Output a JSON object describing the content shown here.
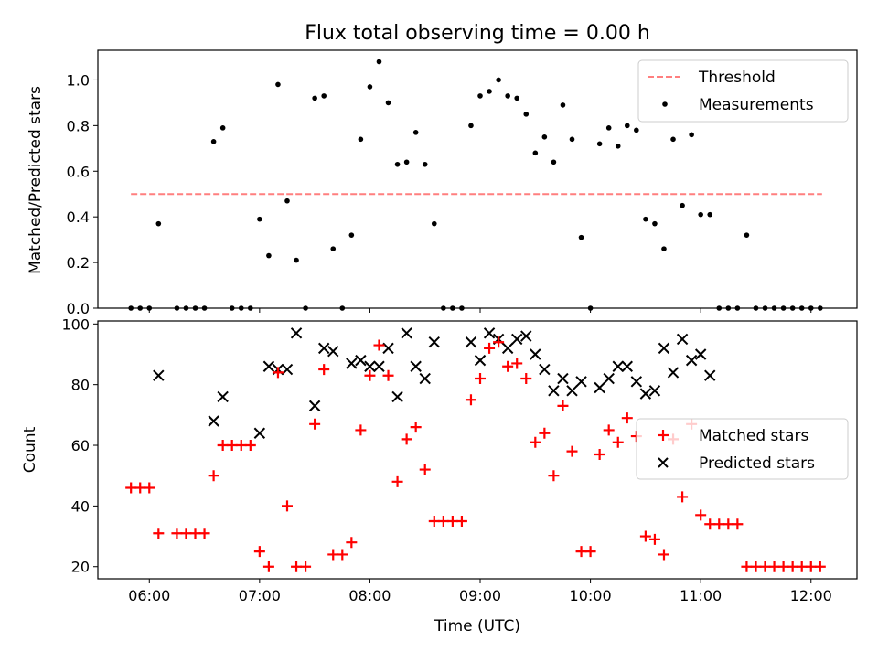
{
  "chart_data": [
    {
      "type": "scatter",
      "title": "Flux total observing time = 0.00 h",
      "xlabel": "",
      "ylabel": "Matched/Predicted stars",
      "ylim": [
        0,
        1.13
      ],
      "xlim": [
        "05:32",
        "12:25"
      ],
      "yticks": [
        "0.0",
        "0.2",
        "0.4",
        "0.6",
        "0.8",
        "1.0"
      ],
      "grid": false,
      "legend_position": "top-right",
      "threshold": {
        "name": "Threshold",
        "value": 0.5,
        "x_start": "05:50",
        "x_end": "12:06",
        "color": "#ff7f7f"
      },
      "series": [
        {
          "name": "Measurements",
          "color": "#000000",
          "points": [
            [
              "05:50",
              0.0
            ],
            [
              "05:55",
              0.0
            ],
            [
              "06:00",
              0.0
            ],
            [
              "06:05",
              0.37
            ],
            [
              "06:15",
              0.0
            ],
            [
              "06:20",
              0.0
            ],
            [
              "06:25",
              0.0
            ],
            [
              "06:30",
              0.0
            ],
            [
              "06:35",
              0.73
            ],
            [
              "06:40",
              0.79
            ],
            [
              "06:45",
              0.0
            ],
            [
              "06:50",
              0.0
            ],
            [
              "06:55",
              0.0
            ],
            [
              "07:00",
              0.39
            ],
            [
              "07:05",
              0.23
            ],
            [
              "07:10",
              0.98
            ],
            [
              "07:15",
              0.47
            ],
            [
              "07:20",
              0.21
            ],
            [
              "07:25",
              0.0
            ],
            [
              "07:30",
              0.92
            ],
            [
              "07:35",
              0.93
            ],
            [
              "07:40",
              0.26
            ],
            [
              "07:45",
              0.0
            ],
            [
              "07:50",
              0.32
            ],
            [
              "07:55",
              0.74
            ],
            [
              "08:00",
              0.97
            ],
            [
              "08:05",
              1.08
            ],
            [
              "08:10",
              0.9
            ],
            [
              "08:15",
              0.63
            ],
            [
              "08:20",
              0.64
            ],
            [
              "08:25",
              0.77
            ],
            [
              "08:30",
              0.63
            ],
            [
              "08:35",
              0.37
            ],
            [
              "08:40",
              0.0
            ],
            [
              "08:45",
              0.0
            ],
            [
              "08:50",
              0.0
            ],
            [
              "08:55",
              0.8
            ],
            [
              "09:00",
              0.93
            ],
            [
              "09:05",
              0.95
            ],
            [
              "09:10",
              1.0
            ],
            [
              "09:15",
              0.93
            ],
            [
              "09:20",
              0.92
            ],
            [
              "09:25",
              0.85
            ],
            [
              "09:30",
              0.68
            ],
            [
              "09:35",
              0.75
            ],
            [
              "09:40",
              0.64
            ],
            [
              "09:45",
              0.89
            ],
            [
              "09:50",
              0.74
            ],
            [
              "09:55",
              0.31
            ],
            [
              "10:00",
              0.0
            ],
            [
              "10:05",
              0.72
            ],
            [
              "10:10",
              0.79
            ],
            [
              "10:15",
              0.71
            ],
            [
              "10:20",
              0.8
            ],
            [
              "10:25",
              0.78
            ],
            [
              "10:30",
              0.39
            ],
            [
              "10:35",
              0.37
            ],
            [
              "10:40",
              0.26
            ],
            [
              "10:45",
              0.74
            ],
            [
              "10:50",
              0.45
            ],
            [
              "10:55",
              0.76
            ],
            [
              "11:00",
              0.41
            ],
            [
              "11:05",
              0.41
            ],
            [
              "11:10",
              0.0
            ],
            [
              "11:15",
              0.0
            ],
            [
              "11:20",
              0.0
            ],
            [
              "11:25",
              0.32
            ],
            [
              "11:30",
              0.0
            ],
            [
              "11:35",
              0.0
            ],
            [
              "11:40",
              0.0
            ],
            [
              "11:45",
              0.0
            ],
            [
              "11:50",
              0.0
            ],
            [
              "11:55",
              0.0
            ],
            [
              "12:00",
              0.0
            ],
            [
              "12:05",
              0.0
            ]
          ]
        }
      ]
    },
    {
      "type": "scatter",
      "title": "",
      "xlabel": "Time (UTC)",
      "ylabel": "Count",
      "ylim": [
        16,
        101
      ],
      "xlim": [
        "05:32",
        "12:25"
      ],
      "yticks": [
        "20",
        "40",
        "60",
        "80",
        "100"
      ],
      "xticks": [
        "06:00",
        "07:00",
        "08:00",
        "09:00",
        "10:00",
        "11:00",
        "12:00"
      ],
      "grid": false,
      "legend_position": "center-right",
      "series": [
        {
          "name": "Matched stars",
          "color": "#ff0000",
          "marker": "+",
          "points": [
            [
              "05:50",
              46
            ],
            [
              "05:55",
              46
            ],
            [
              "06:00",
              46
            ],
            [
              "06:05",
              31
            ],
            [
              "06:15",
              31
            ],
            [
              "06:20",
              31
            ],
            [
              "06:25",
              31
            ],
            [
              "06:30",
              31
            ],
            [
              "06:35",
              50
            ],
            [
              "06:40",
              60
            ],
            [
              "06:45",
              60
            ],
            [
              "06:50",
              60
            ],
            [
              "06:55",
              60
            ],
            [
              "07:00",
              25
            ],
            [
              "07:05",
              20
            ],
            [
              "07:10",
              84
            ],
            [
              "07:15",
              40
            ],
            [
              "07:20",
              20
            ],
            [
              "07:25",
              20
            ],
            [
              "07:30",
              67
            ],
            [
              "07:35",
              85
            ],
            [
              "07:40",
              24
            ],
            [
              "07:45",
              24
            ],
            [
              "07:50",
              28
            ],
            [
              "07:55",
              65
            ],
            [
              "08:00",
              83
            ],
            [
              "08:05",
              93
            ],
            [
              "08:10",
              83
            ],
            [
              "08:15",
              48
            ],
            [
              "08:20",
              62
            ],
            [
              "08:25",
              66
            ],
            [
              "08:30",
              52
            ],
            [
              "08:35",
              35
            ],
            [
              "08:40",
              35
            ],
            [
              "08:45",
              35
            ],
            [
              "08:50",
              35
            ],
            [
              "08:55",
              75
            ],
            [
              "09:00",
              82
            ],
            [
              "09:05",
              92
            ],
            [
              "09:10",
              94
            ],
            [
              "09:15",
              86
            ],
            [
              "09:20",
              87
            ],
            [
              "09:25",
              82
            ],
            [
              "09:30",
              61
            ],
            [
              "09:35",
              64
            ],
            [
              "09:40",
              50
            ],
            [
              "09:45",
              73
            ],
            [
              "09:50",
              58
            ],
            [
              "09:55",
              25
            ],
            [
              "10:00",
              25
            ],
            [
              "10:05",
              57
            ],
            [
              "10:10",
              65
            ],
            [
              "10:15",
              61
            ],
            [
              "10:20",
              69
            ],
            [
              "10:25",
              63
            ],
            [
              "10:30",
              30
            ],
            [
              "10:35",
              29
            ],
            [
              "10:40",
              24
            ],
            [
              "10:45",
              62
            ],
            [
              "10:50",
              43
            ],
            [
              "10:55",
              67
            ],
            [
              "11:00",
              37
            ],
            [
              "11:05",
              34
            ],
            [
              "11:10",
              34
            ],
            [
              "11:15",
              34
            ],
            [
              "11:20",
              34
            ],
            [
              "11:25",
              20
            ],
            [
              "11:30",
              20
            ],
            [
              "11:35",
              20
            ],
            [
              "11:40",
              20
            ],
            [
              "11:45",
              20
            ],
            [
              "11:50",
              20
            ],
            [
              "11:55",
              20
            ],
            [
              "12:00",
              20
            ],
            [
              "12:05",
              20
            ]
          ]
        },
        {
          "name": "Predicted stars",
          "color": "#000000",
          "marker": "x",
          "points": [
            [
              "06:05",
              83
            ],
            [
              "06:35",
              68
            ],
            [
              "06:40",
              76
            ],
            [
              "07:00",
              64
            ],
            [
              "07:05",
              86
            ],
            [
              "07:10",
              85
            ],
            [
              "07:15",
              85
            ],
            [
              "07:20",
              97
            ],
            [
              "07:30",
              73
            ],
            [
              "07:35",
              92
            ],
            [
              "07:40",
              91
            ],
            [
              "07:50",
              87
            ],
            [
              "07:55",
              88
            ],
            [
              "08:00",
              86
            ],
            [
              "08:05",
              86
            ],
            [
              "08:10",
              92
            ],
            [
              "08:15",
              76
            ],
            [
              "08:20",
              97
            ],
            [
              "08:25",
              86
            ],
            [
              "08:30",
              82
            ],
            [
              "08:35",
              94
            ],
            [
              "08:55",
              94
            ],
            [
              "09:00",
              88
            ],
            [
              "09:05",
              97
            ],
            [
              "09:10",
              95
            ],
            [
              "09:15",
              92
            ],
            [
              "09:20",
              95
            ],
            [
              "09:25",
              96
            ],
            [
              "09:30",
              90
            ],
            [
              "09:35",
              85
            ],
            [
              "09:40",
              78
            ],
            [
              "09:45",
              82
            ],
            [
              "09:50",
              78
            ],
            [
              "09:55",
              81
            ],
            [
              "10:05",
              79
            ],
            [
              "10:10",
              82
            ],
            [
              "10:15",
              86
            ],
            [
              "10:20",
              86
            ],
            [
              "10:25",
              81
            ],
            [
              "10:30",
              77
            ],
            [
              "10:35",
              78
            ],
            [
              "10:40",
              92
            ],
            [
              "10:45",
              84
            ],
            [
              "10:50",
              95
            ],
            [
              "10:55",
              88
            ],
            [
              "11:00",
              90
            ],
            [
              "11:05",
              83
            ]
          ]
        }
      ]
    }
  ]
}
